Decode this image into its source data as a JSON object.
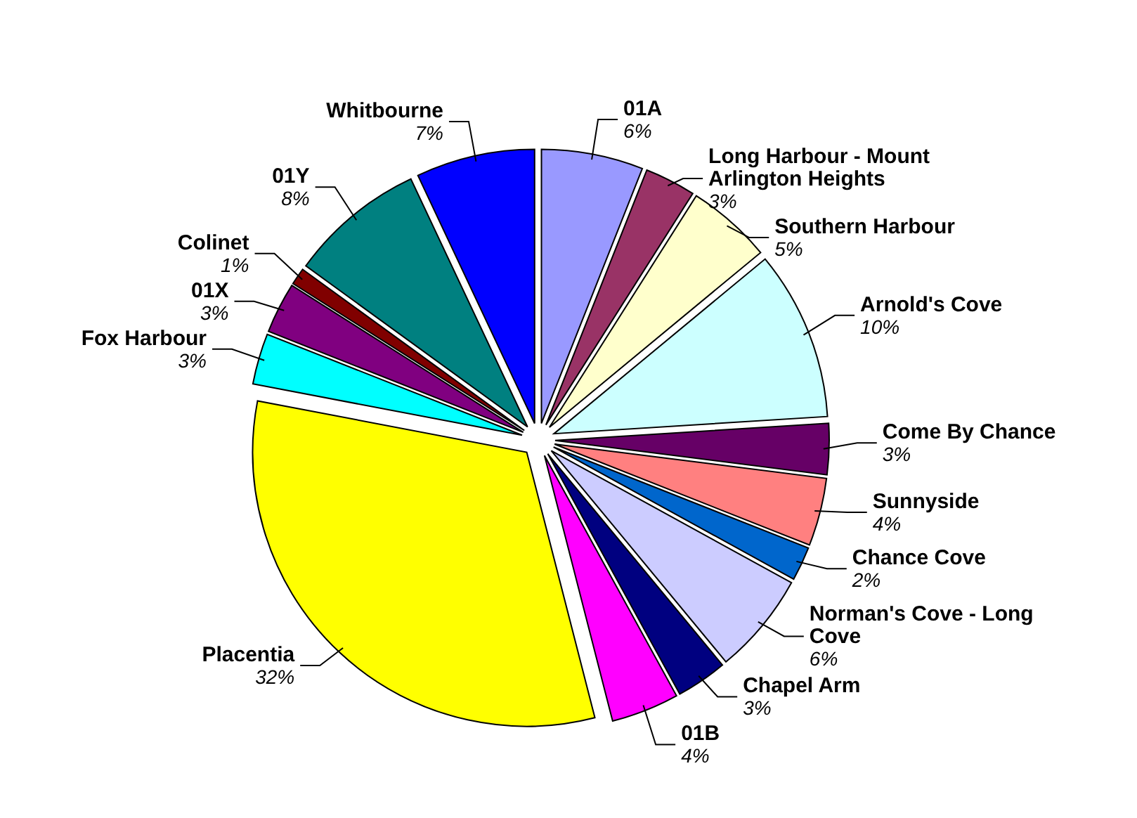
{
  "chart_data": {
    "type": "pie",
    "categories": [
      "01A",
      "Long Harbour - Mount Arlington Heights",
      "Southern Harbour",
      "Arnold's Cove",
      "Come By Chance",
      "Sunnyside",
      "Chance Cove",
      "Norman's Cove - Long Cove",
      "Chapel Arm",
      "01B",
      "Placentia",
      "Fox Harbour",
      "01X",
      "Colinet",
      "01Y",
      "Whitbourne"
    ],
    "values": [
      6,
      3,
      5,
      10,
      3,
      4,
      2,
      6,
      3,
      4,
      32,
      3,
      3,
      1,
      8,
      7
    ],
    "value_labels": [
      "6%",
      "3%",
      "5%",
      "10%",
      "3%",
      "4%",
      "2%",
      "6%",
      "3%",
      "4%",
      "32%",
      "3%",
      "3%",
      "1%",
      "8%",
      "7%"
    ],
    "colors": [
      "#9999ff",
      "#993366",
      "#ffffcc",
      "#ccffff",
      "#660066",
      "#ff8080",
      "#0066cc",
      "#ccccff",
      "#000080",
      "#ff00ff",
      "#ffff00",
      "#00ffff",
      "#800080",
      "#800000",
      "#008080",
      "#0000ff"
    ],
    "legend": false
  }
}
